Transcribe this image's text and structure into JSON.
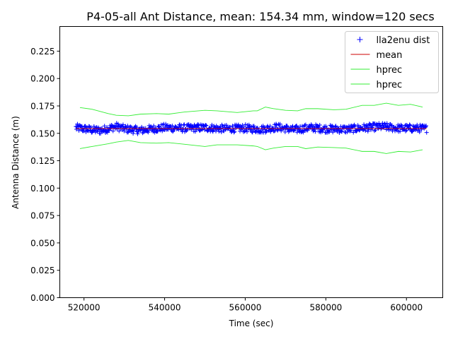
{
  "chart_data": {
    "type": "scatter",
    "title": "P4-05-all Ant Distance, mean: 154.34 mm, window=120 secs",
    "xlabel": "Time (sec)",
    "ylabel": "Antenna Distance (m)",
    "xlim": [
      514000,
      609000
    ],
    "ylim": [
      0,
      0.2475
    ],
    "x_ticks": [
      520000,
      540000,
      560000,
      580000,
      600000
    ],
    "x_tick_labels": [
      "520000",
      "540000",
      "560000",
      "580000",
      "600000"
    ],
    "y_ticks": [
      0.0,
      0.025,
      0.05,
      0.075,
      0.1,
      0.125,
      0.15,
      0.175,
      0.2,
      0.225
    ],
    "y_tick_labels": [
      "0.000",
      "0.025",
      "0.050",
      "0.075",
      "0.100",
      "0.125",
      "0.150",
      "0.175",
      "0.200",
      "0.225"
    ],
    "grid": false,
    "legend_position": "top-right",
    "series": [
      {
        "name": "lla2enu dist",
        "kind": "markers",
        "marker": "+",
        "color": "#0000ff",
        "x_range": [
          518000,
          605000
        ],
        "center": 0.1543,
        "spread": 0.0035,
        "points_sample": [
          [
            518000,
            0.156
          ],
          [
            522000,
            0.152
          ],
          [
            524000,
            0.151
          ],
          [
            528000,
            0.158
          ],
          [
            530000,
            0.154
          ],
          [
            534000,
            0.151
          ],
          [
            536000,
            0.153
          ],
          [
            540000,
            0.156
          ],
          [
            545000,
            0.155
          ],
          [
            550000,
            0.156
          ],
          [
            555000,
            0.154
          ],
          [
            560000,
            0.155
          ],
          [
            564000,
            0.153
          ],
          [
            568000,
            0.157
          ],
          [
            572000,
            0.152
          ],
          [
            576000,
            0.156
          ],
          [
            580000,
            0.154
          ],
          [
            585000,
            0.153
          ],
          [
            590000,
            0.156
          ],
          [
            594000,
            0.158
          ],
          [
            598000,
            0.155
          ],
          [
            602000,
            0.155
          ],
          [
            605000,
            0.154
          ]
        ]
      },
      {
        "name": "mean",
        "kind": "line",
        "color": "#cc0000",
        "x": [
          518000,
          605000
        ],
        "y": [
          0.15434,
          0.15434
        ]
      },
      {
        "name": "hprec",
        "kind": "line",
        "color": "#33ee33",
        "x": [
          519000,
          522000,
          526000,
          528000,
          531000,
          534000,
          538000,
          541000,
          545000,
          550000,
          553000,
          558000,
          562000,
          563000,
          565000,
          567000,
          570000,
          573000,
          575000,
          578000,
          582000,
          585000,
          589000,
          592000,
          595000,
          598000,
          601000,
          604000
        ],
        "y": [
          0.1735,
          0.172,
          0.168,
          0.1665,
          0.166,
          0.1675,
          0.168,
          0.1675,
          0.1695,
          0.171,
          0.1705,
          0.169,
          0.1705,
          0.1705,
          0.174,
          0.1725,
          0.171,
          0.1705,
          0.1725,
          0.1725,
          0.1715,
          0.172,
          0.1755,
          0.1755,
          0.1775,
          0.1755,
          0.1765,
          0.174
        ]
      },
      {
        "name": "hprec",
        "kind": "line",
        "color": "#33ee33",
        "x": [
          519000,
          522000,
          526000,
          528000,
          531000,
          534000,
          538000,
          541000,
          545000,
          550000,
          553000,
          558000,
          562000,
          563000,
          565000,
          567000,
          570000,
          573000,
          575000,
          578000,
          582000,
          585000,
          589000,
          592000,
          595000,
          598000,
          601000,
          604000
        ],
        "y": [
          0.136,
          0.138,
          0.1405,
          0.142,
          0.1435,
          0.1415,
          0.141,
          0.1415,
          0.14,
          0.138,
          0.1395,
          0.1395,
          0.1385,
          0.138,
          0.135,
          0.1365,
          0.138,
          0.138,
          0.136,
          0.1375,
          0.137,
          0.1365,
          0.1335,
          0.1335,
          0.1315,
          0.1335,
          0.133,
          0.135
        ]
      }
    ]
  }
}
